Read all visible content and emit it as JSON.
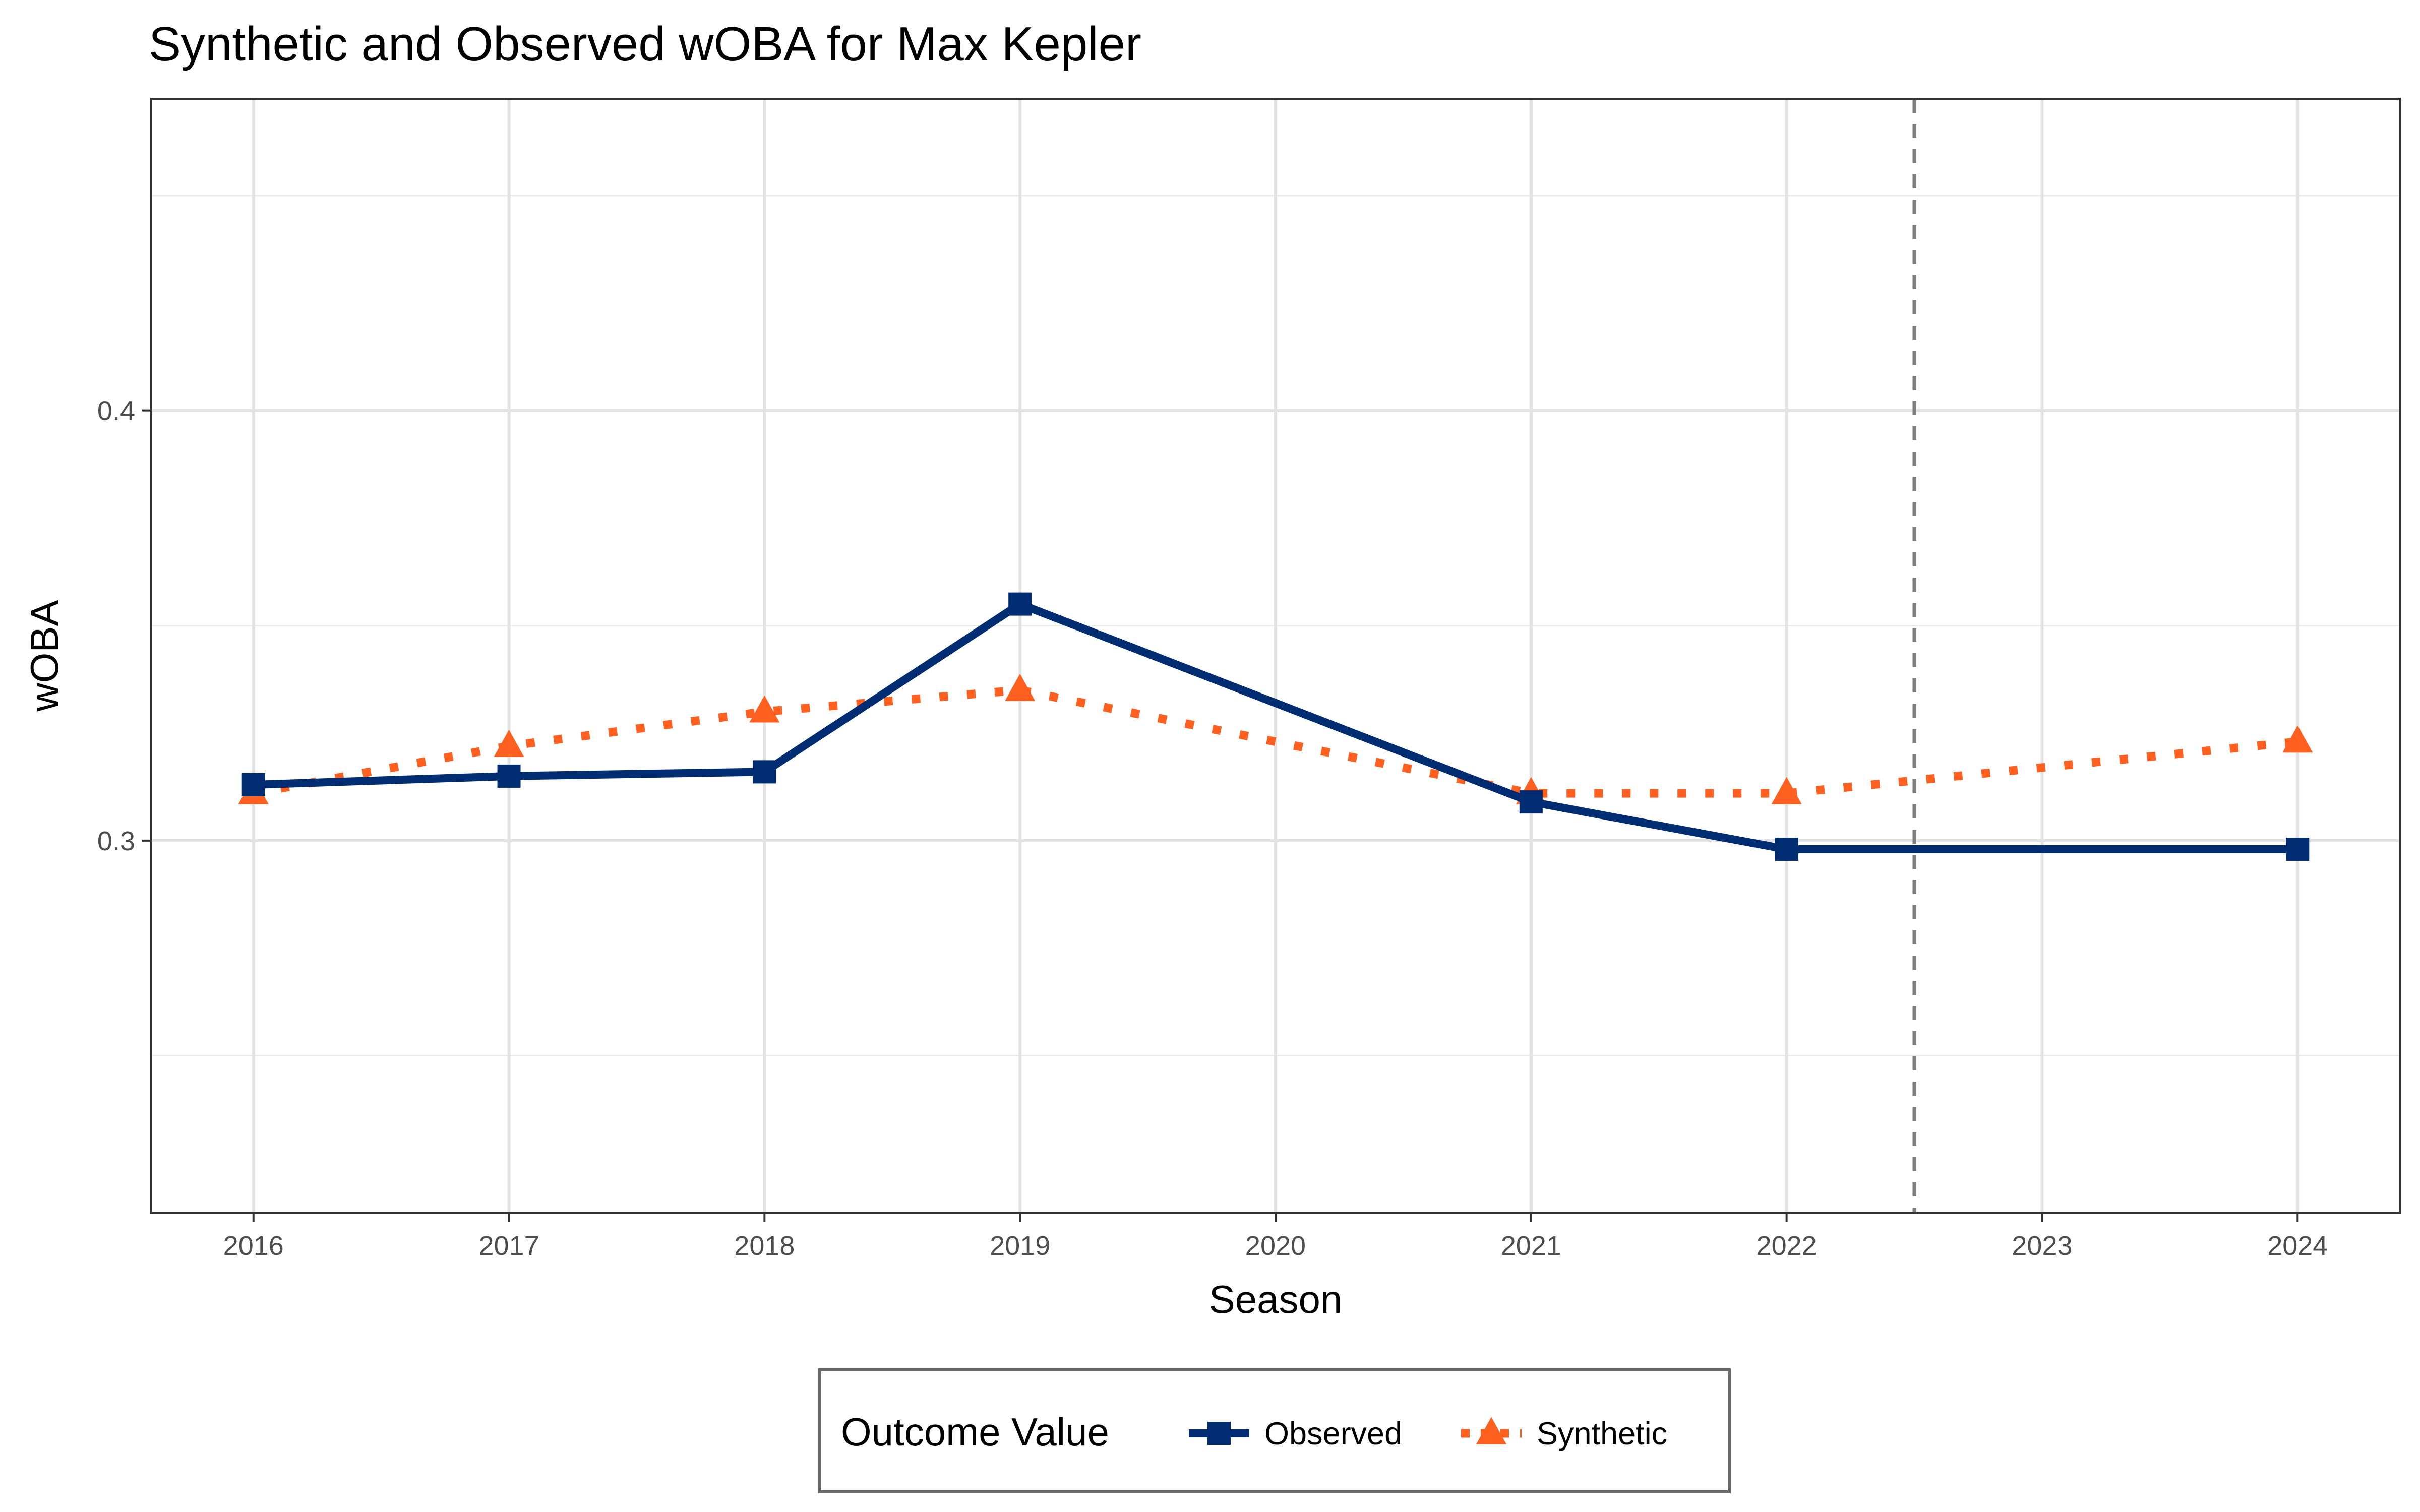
{
  "chart_data": {
    "type": "line",
    "title": "Synthetic and Observed wOBA for Max Kepler",
    "xlabel": "Season",
    "ylabel": "wOBA",
    "x": [
      2016,
      2017,
      2018,
      2019,
      2020,
      2021,
      2022,
      2023,
      2024
    ],
    "xlim": [
      2015.6,
      2024.4
    ],
    "ylim": [
      0.2135,
      0.4725
    ],
    "y_ticks": [
      0.3,
      0.4
    ],
    "y_tick_labels": [
      "0.3",
      "0.4"
    ],
    "grid": true,
    "treatment_line": {
      "x": 2022.5,
      "style": "dashed",
      "color": "#7f7f7f"
    },
    "series": [
      {
        "name": "Observed",
        "color": "#002d72",
        "line_style": "solid",
        "marker": "square",
        "points": [
          {
            "x": 2016,
            "y": 0.313
          },
          {
            "x": 2017,
            "y": 0.315
          },
          {
            "x": 2018,
            "y": 0.316
          },
          {
            "x": 2019,
            "y": 0.355
          },
          {
            "x": 2021,
            "y": 0.309
          },
          {
            "x": 2022,
            "y": 0.298
          },
          {
            "x": 2024,
            "y": 0.298
          }
        ]
      },
      {
        "name": "Synthetic",
        "color": "#ff5f1f",
        "line_style": "dotted",
        "marker": "triangle",
        "points": [
          {
            "x": 2016,
            "y": 0.311
          },
          {
            "x": 2017,
            "y": 0.322
          },
          {
            "x": 2018,
            "y": 0.33
          },
          {
            "x": 2019,
            "y": 0.335
          },
          {
            "x": 2021,
            "y": 0.311
          },
          {
            "x": 2022,
            "y": 0.311
          },
          {
            "x": 2024,
            "y": 0.323
          }
        ]
      }
    ],
    "legend": {
      "title": "Outcome Value",
      "position": "bottom",
      "entries": [
        "Observed",
        "Synthetic"
      ]
    }
  }
}
